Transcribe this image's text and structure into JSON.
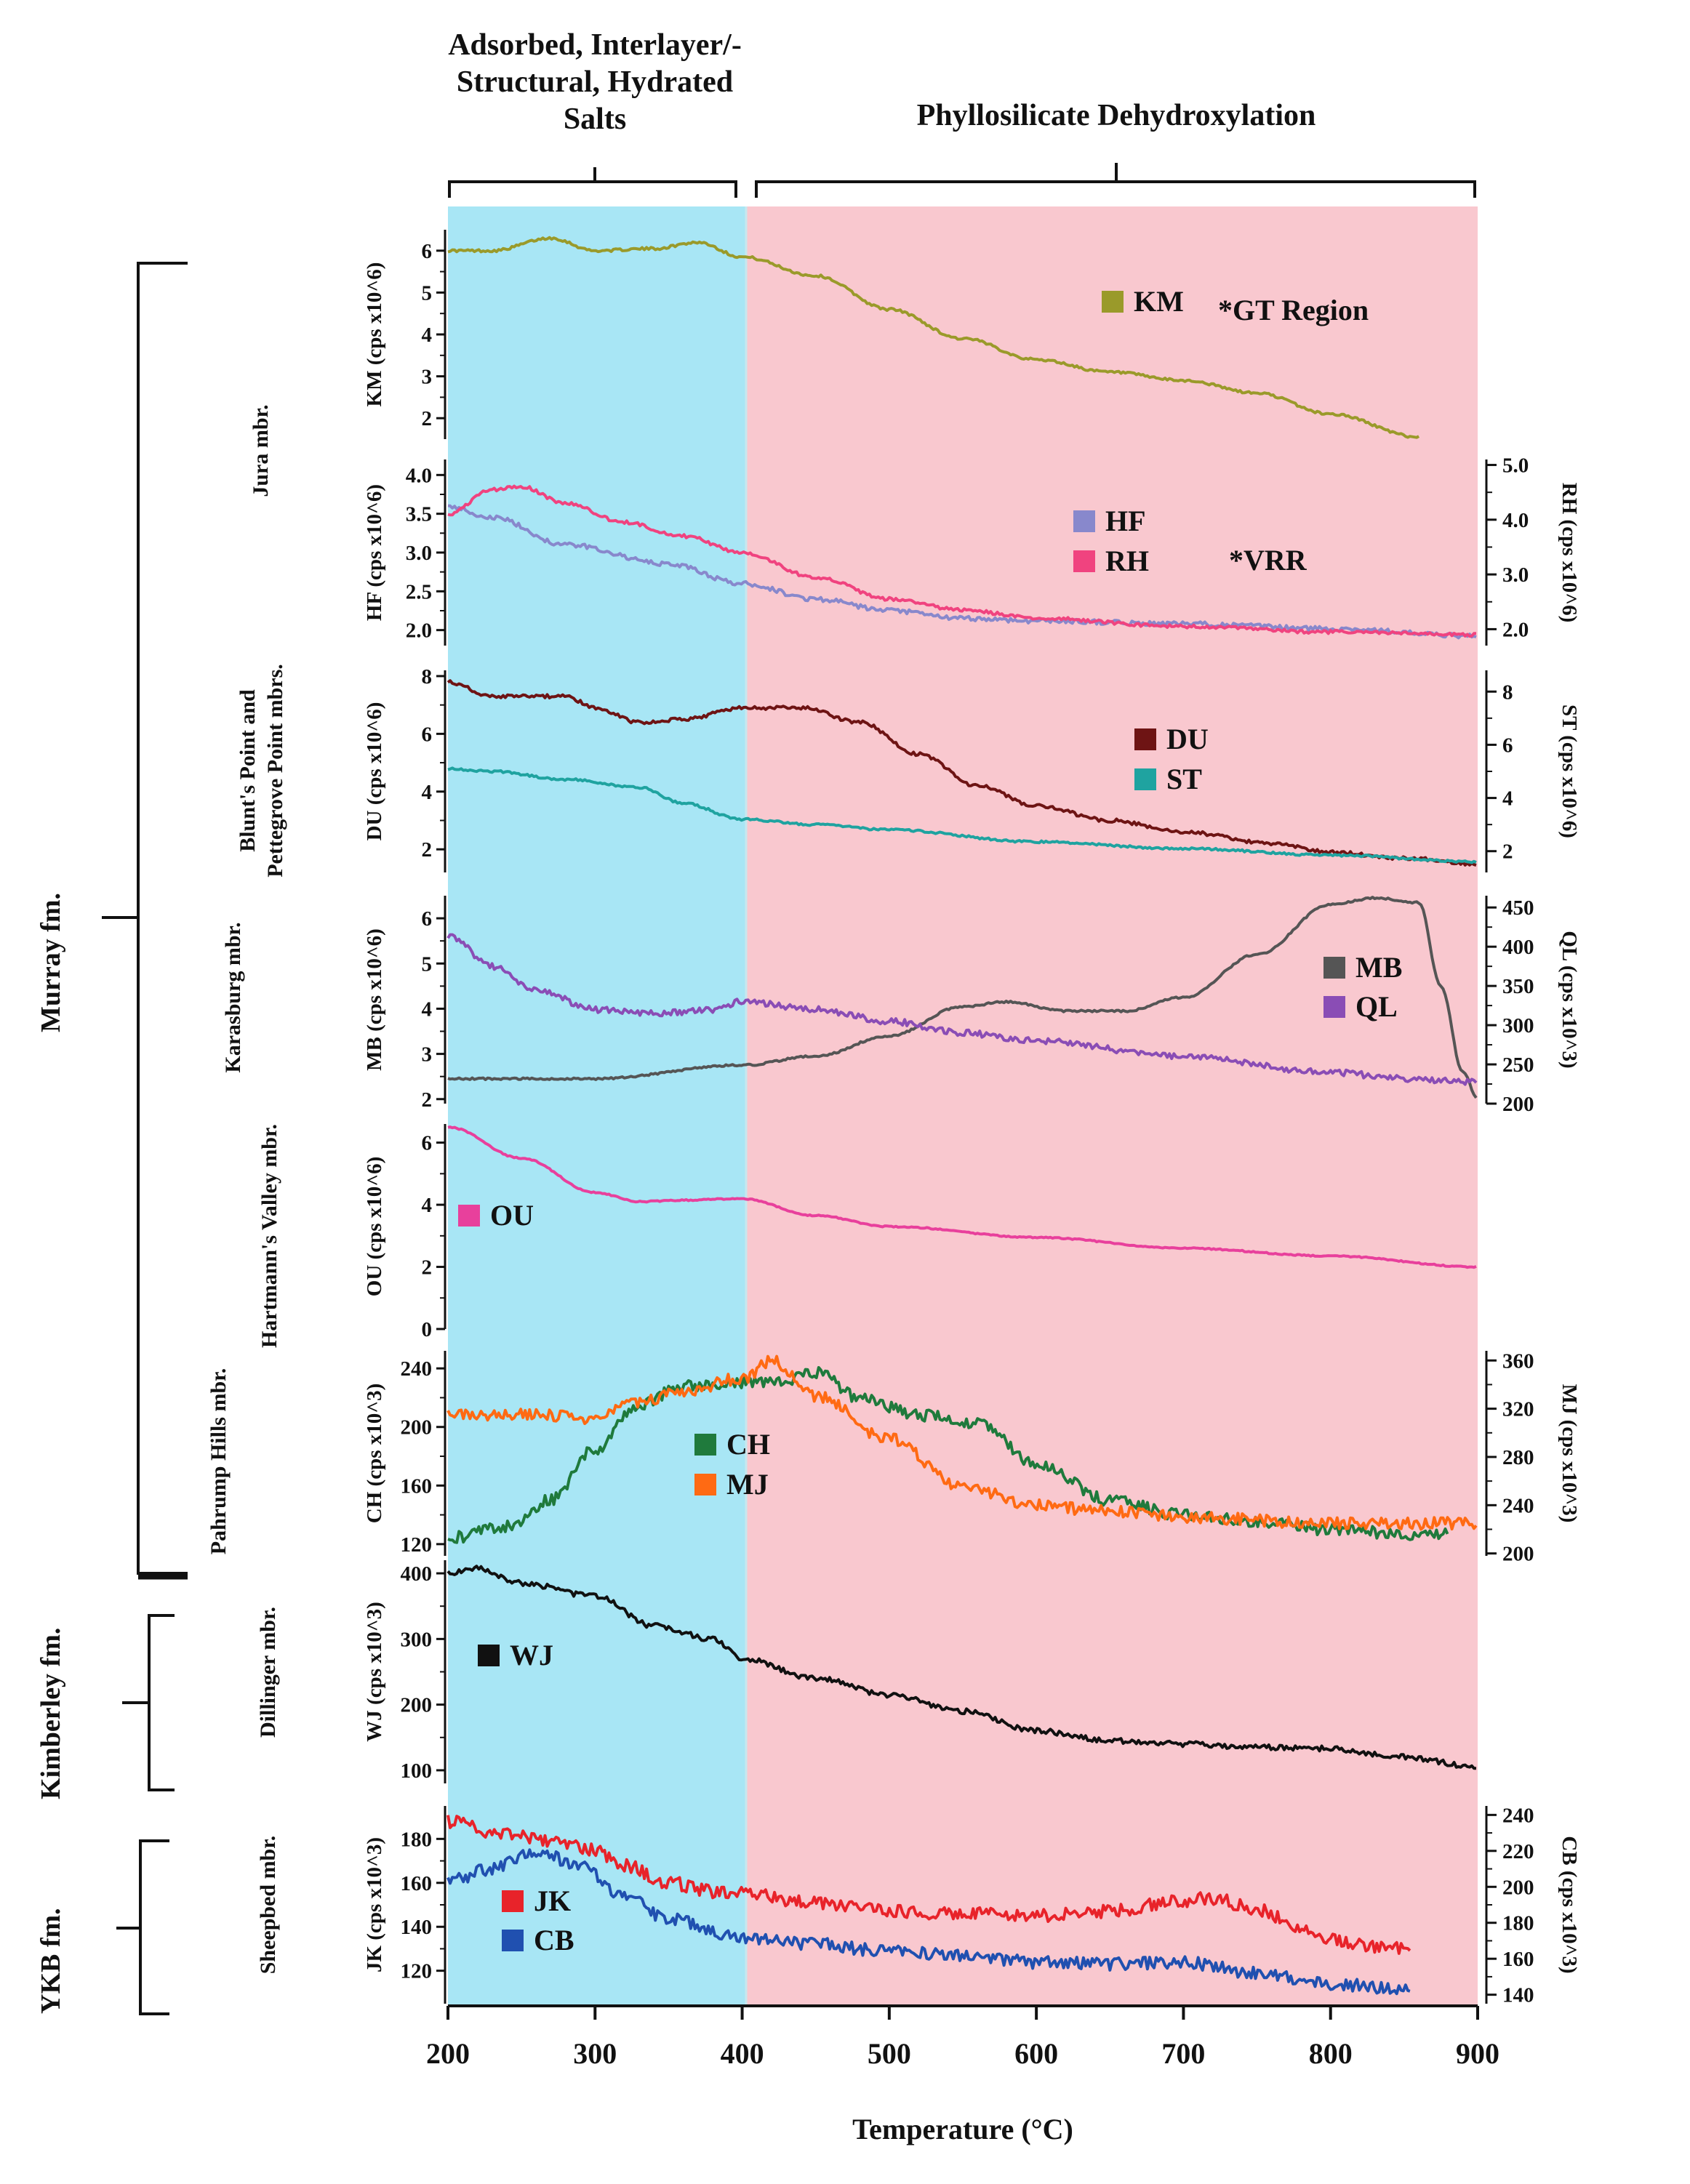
{
  "header": {
    "region1_lines": [
      "Adsorbed, Interlayer/-",
      "Structural, Hydrated",
      "Salts"
    ],
    "region2": "Phyllosilicate Dehydroxylation"
  },
  "formations": {
    "murray": "Murray fm.",
    "kimberley": "Kimberley fm.",
    "ykb": "YKB fm."
  },
  "colors": {
    "region1_bg": "#a8e6f5",
    "region2_bg": "#f9c8cf"
  },
  "chart_data": {
    "type": "line",
    "xlabel": "Temperature (°C)",
    "xlim": [
      200,
      900
    ],
    "x_ticks": [
      200,
      300,
      400,
      500,
      600,
      700,
      800,
      900
    ],
    "x_tick_labels": [
      "200",
      "300",
      "400",
      "500",
      "600",
      "700",
      "800",
      "900"
    ],
    "regions": [
      {
        "label": "Adsorbed, Interlayer/-Structural, Hydrated Salts",
        "x_range": [
          200,
          400
        ]
      },
      {
        "label": "Phyllosilicate Dehydroxylation",
        "x_range": [
          400,
          900
        ]
      }
    ],
    "panels": [
      {
        "member": "Jura mbr.",
        "note": "*GT Region",
        "left_axis": {
          "label": "KM (cps x10^6)",
          "ylim": [
            1.5,
            6.5
          ],
          "ticks": [
            2,
            3,
            4,
            5,
            6
          ],
          "tick_labels": [
            "2",
            "3",
            "4",
            "5",
            "6"
          ]
        },
        "series": [
          {
            "name": "KM",
            "color": "#9a9a2a",
            "axis": "left",
            "noise": 0.03,
            "x": [
              200,
              230,
              270,
              300,
              340,
              370,
              400,
              450,
              500,
              550,
              600,
              650,
              700,
              750,
              800,
              860
            ],
            "values": [
              6.0,
              6.0,
              6.3,
              6.0,
              6.05,
              6.2,
              5.85,
              5.4,
              4.6,
              3.9,
              3.4,
              3.1,
              2.9,
              2.6,
              2.1,
              1.55
            ]
          }
        ]
      },
      {
        "member": "Jura mbr.",
        "note": "*VRR",
        "left_axis": {
          "label": "HF (cps x10^6)",
          "ylim": [
            1.8,
            4.2
          ],
          "ticks": [
            2.0,
            2.5,
            3.0,
            3.5,
            4.0
          ],
          "tick_labels": [
            "2.0",
            "2.5",
            "3.0",
            "3.5",
            "4.0"
          ]
        },
        "right_axis": {
          "label": "RH (cps x10^6)",
          "ylim": [
            1.7,
            5.1
          ],
          "ticks": [
            2.0,
            3.0,
            4.0,
            5.0
          ],
          "tick_labels": [
            "2.0",
            "3.0",
            "4.0",
            "5.0"
          ]
        },
        "series": [
          {
            "name": "HF",
            "color": "#8888cc",
            "axis": "left",
            "noise": 0.03,
            "x": [
              200,
              230,
              280,
              350,
              400,
              450,
              500,
              550,
              600,
              700,
              800,
              900
            ],
            "values": [
              3.6,
              3.45,
              3.1,
              2.85,
              2.6,
              2.4,
              2.25,
              2.15,
              2.12,
              2.08,
              2.02,
              1.92
            ]
          },
          {
            "name": "RH",
            "color": "#f0437f",
            "axis": "right",
            "noise": 0.03,
            "x": [
              200,
              230,
              250,
              280,
              320,
              360,
              400,
              450,
              500,
              550,
              600,
              700,
              800,
              900
            ],
            "values": [
              4.1,
              4.55,
              4.6,
              4.3,
              3.95,
              3.7,
              3.4,
              2.95,
              2.55,
              2.35,
              2.2,
              2.05,
              1.95,
              1.9
            ]
          }
        ]
      },
      {
        "member": "Blunt's Point and Pettegrove Point mbrs.",
        "left_axis": {
          "label": "DU (cps x10^6)",
          "ylim": [
            1.2,
            8.2
          ],
          "ticks": [
            2,
            4,
            6,
            8
          ],
          "tick_labels": [
            "2",
            "4",
            "6",
            "8"
          ]
        },
        "right_axis": {
          "label": "ST (cps x10^6)",
          "ylim": [
            1.2,
            8.8
          ],
          "ticks": [
            2,
            4,
            6,
            8
          ],
          "tick_labels": [
            "2",
            "4",
            "6",
            "8"
          ]
        },
        "series": [
          {
            "name": "DU",
            "color": "#6e1414",
            "axis": "left",
            "noise": 0.06,
            "x": [
              200,
              230,
              280,
              300,
              330,
              360,
              400,
              440,
              480,
              520,
              560,
              600,
              650,
              700,
              760,
              800,
              850,
              900
            ],
            "values": [
              7.8,
              7.3,
              7.3,
              6.9,
              6.4,
              6.5,
              6.9,
              6.9,
              6.4,
              5.3,
              4.2,
              3.5,
              3.0,
              2.6,
              2.2,
              1.9,
              1.7,
              1.5
            ]
          },
          {
            "name": "ST",
            "color": "#1fa3a0",
            "axis": "right",
            "noise": 0.04,
            "x": [
              200,
              230,
              280,
              330,
              360,
              400,
              450,
              500,
              600,
              700,
              800,
              900
            ],
            "values": [
              5.1,
              5.0,
              4.7,
              4.4,
              3.8,
              3.2,
              3.0,
              2.8,
              2.35,
              2.1,
              1.85,
              1.6
            ]
          }
        ]
      },
      {
        "member": "Karasburg mbr.",
        "left_axis": {
          "label": "MB (cps x10^6)",
          "ylim": [
            1.9,
            6.5
          ],
          "ticks": [
            2,
            3,
            4,
            5,
            6
          ],
          "tick_labels": [
            "2",
            "3",
            "4",
            "5",
            "6"
          ]
        },
        "right_axis": {
          "label": "QL (cps x10^3)",
          "ylim": [
            200,
            465
          ],
          "ticks": [
            200,
            250,
            300,
            350,
            400,
            450
          ],
          "tick_labels": [
            "200",
            "250",
            "300",
            "350",
            "400",
            "450"
          ]
        },
        "series": [
          {
            "name": "MB",
            "color": "#555555",
            "axis": "left",
            "noise": 0.02,
            "x": [
              200,
              300,
              400,
              450,
              500,
              550,
              580,
              620,
              660,
              700,
              750,
              800,
              830,
              860,
              875,
              890,
              900
            ],
            "values": [
              2.45,
              2.45,
              2.75,
              2.95,
              3.4,
              4.05,
              4.15,
              3.95,
              3.95,
              4.25,
              5.2,
              6.3,
              6.45,
              6.35,
              4.5,
              2.6,
              2.0
            ]
          },
          {
            "name": "QL",
            "color": "#8a4db5",
            "axis": "right",
            "noise": 4,
            "x": [
              200,
              230,
              260,
              300,
              340,
              380,
              400,
              450,
              500,
              550,
              600,
              700,
              800,
              850,
              900
            ],
            "values": [
              415,
              375,
              345,
              320,
              315,
              320,
              330,
              320,
              305,
              290,
              280,
              260,
              240,
              232,
              228
            ]
          }
        ]
      },
      {
        "member": "Hartmann's Valley mbr.",
        "left_axis": {
          "label": "OU (cps x10^6)",
          "ylim": [
            0,
            6.6
          ],
          "ticks": [
            0,
            2,
            4,
            6
          ],
          "tick_labels": [
            "0",
            "2",
            "4",
            "6"
          ]
        },
        "series": [
          {
            "name": "OU",
            "color": "#e8409c",
            "axis": "left",
            "noise": 0.02,
            "x": [
              200,
              250,
              300,
              330,
              360,
              400,
              450,
              500,
              600,
              700,
              800,
              900
            ],
            "values": [
              6.5,
              5.5,
              4.4,
              4.1,
              4.15,
              4.2,
              3.65,
              3.3,
              2.95,
              2.6,
              2.35,
              2.0
            ]
          }
        ]
      },
      {
        "member": "Pahrump Hills mbr.",
        "left_axis": {
          "label": "CH (cps x10^3)",
          "ylim": [
            112,
            252
          ],
          "ticks": [
            120,
            160,
            200,
            240
          ],
          "tick_labels": [
            "120",
            "160",
            "200",
            "240"
          ]
        },
        "right_axis": {
          "label": "MJ (cps x10^3)",
          "ylim": [
            198,
            368
          ],
          "ticks": [
            200,
            240,
            280,
            320,
            360
          ],
          "tick_labels": [
            "200",
            "240",
            "280",
            "320",
            "360"
          ]
        },
        "series": [
          {
            "name": "CH",
            "color": "#1f7a3c",
            "axis": "left",
            "noise": 4,
            "x": [
              200,
              240,
              270,
              300,
              330,
              360,
              400,
              430,
              450,
              480,
              520,
              560,
              600,
              650,
              700,
              750,
              800,
              850,
              880
            ],
            "values": [
              124,
              132,
              150,
              185,
              215,
              228,
              230,
              232,
              237,
              220,
              208,
              203,
              175,
              150,
              140,
              135,
              130,
              127,
              127
            ]
          },
          {
            "name": "MJ",
            "color": "#ff6a13",
            "axis": "right",
            "noise": 5,
            "x": [
              200,
              250,
              300,
              330,
              360,
              400,
              420,
              450,
              500,
              550,
              600,
              650,
              700,
              800,
              900
            ],
            "values": [
              315,
              315,
              312,
              325,
              335,
              345,
              360,
              330,
              295,
              255,
              240,
              235,
              230,
              225,
              225
            ]
          }
        ]
      },
      {
        "member": "Dillinger mbr.",
        "left_axis": {
          "label": "WJ (cps x10^3)",
          "ylim": [
            80,
            420
          ],
          "ticks": [
            100,
            200,
            300,
            400
          ],
          "tick_labels": [
            "100",
            "200",
            "300",
            "400"
          ]
        },
        "series": [
          {
            "name": "WJ",
            "color": "#111111",
            "axis": "left",
            "noise": 4,
            "x": [
              200,
              220,
              250,
              300,
              340,
              380,
              400,
              450,
              500,
              550,
              600,
              650,
              700,
              750,
              800,
              850,
              900
            ],
            "values": [
              400,
              408,
              385,
              365,
              320,
              300,
              270,
              240,
              215,
              190,
              160,
              145,
              140,
              135,
              133,
              120,
              105
            ]
          }
        ]
      },
      {
        "member": "Sheepbed mbr.",
        "left_axis": {
          "label": "JK (cps x10^3)",
          "ylim": [
            105,
            195
          ],
          "ticks": [
            120,
            140,
            160,
            180
          ],
          "tick_labels": [
            "120",
            "140",
            "160",
            "180"
          ]
        },
        "right_axis": {
          "label": "CB (cps x10^3)",
          "ylim": [
            135,
            245
          ],
          "ticks": [
            140,
            160,
            180,
            200,
            220,
            240
          ],
          "tick_labels": [
            "140",
            "160",
            "180",
            "200",
            "220",
            "240"
          ]
        },
        "series": [
          {
            "name": "JK",
            "color": "#e8232a",
            "axis": "left",
            "noise": 3,
            "x": [
              200,
              230,
              280,
              300,
              320,
              350,
              380,
              400,
              450,
              500,
              550,
              600,
              650,
              700,
              720,
              750,
              780,
              800,
              830,
              855
            ],
            "values": [
              188,
              183,
              178,
              175,
              168,
              160,
              156,
              155,
              151,
              147,
              146,
              145,
              147,
              152,
              153,
              148,
              140,
              134,
              131,
              130
            ]
          },
          {
            "name": "CB",
            "color": "#2050b0",
            "axis": "right",
            "noise": 3.5,
            "x": [
              200,
              230,
              260,
              290,
              320,
              350,
              400,
              450,
              500,
              550,
              600,
              650,
              700,
              750,
              800,
              855
            ],
            "values": [
              203,
              210,
              220,
              212,
              195,
              182,
              172,
              168,
              164,
              162,
              158,
              157,
              158,
              152,
              146,
              143
            ]
          }
        ]
      }
    ]
  }
}
